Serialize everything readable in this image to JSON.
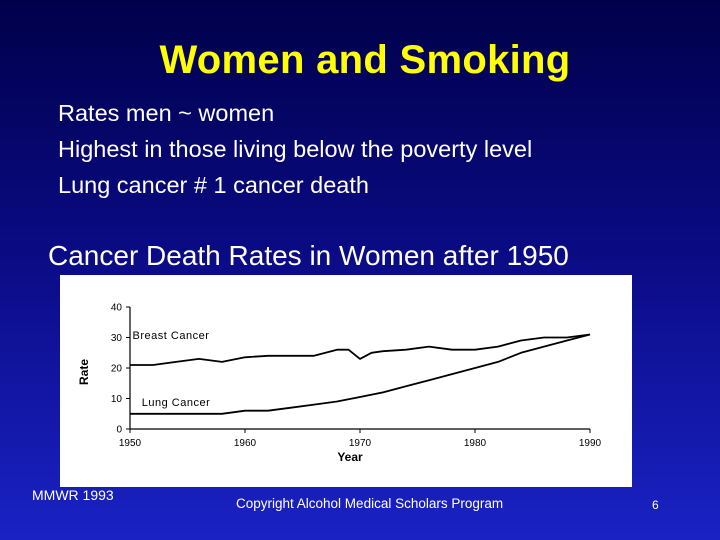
{
  "slide": {
    "title": "Women and Smoking",
    "bullets": [
      "Rates men ~ women",
      "Highest in those living below the poverty level",
      "Lung cancer # 1 cancer death"
    ],
    "chart_heading": "Cancer Death Rates in Women after 1950",
    "source": "MMWR 1993",
    "copyright": "Copyright Alcohol Medical Scholars Program",
    "page_number": "6"
  },
  "colors": {
    "title": "#ffff00",
    "text": "#ffffff",
    "background_top": "#00004a",
    "background_bottom": "#1a22c4",
    "chart_line": "#000000"
  },
  "chart_data": {
    "type": "line",
    "title": "",
    "xlabel": "Year",
    "ylabel": "Rate",
    "xlim": [
      1950,
      1990
    ],
    "ylim": [
      0,
      40
    ],
    "x_ticks": [
      1950,
      1960,
      1970,
      1980,
      1990
    ],
    "y_ticks": [
      0,
      10,
      20,
      30,
      40
    ],
    "grid": false,
    "legend": "inline labels",
    "series": [
      {
        "name": "Breast Cancer",
        "x": [
          1950,
          1952,
          1954,
          1956,
          1958,
          1960,
          1962,
          1964,
          1966,
          1968,
          1969,
          1970,
          1971,
          1972,
          1974,
          1976,
          1978,
          1980,
          1982,
          1984,
          1986,
          1988,
          1990
        ],
        "y": [
          21,
          21,
          22,
          23,
          22,
          23.5,
          24,
          24,
          24,
          26,
          26,
          23,
          25,
          25.5,
          26,
          27,
          26,
          26,
          27,
          29,
          30,
          30,
          31
        ]
      },
      {
        "name": "Lung Cancer",
        "x": [
          1950,
          1952,
          1954,
          1956,
          1958,
          1960,
          1962,
          1964,
          1966,
          1968,
          1970,
          1972,
          1974,
          1976,
          1978,
          1980,
          1982,
          1984,
          1986,
          1988,
          1990
        ],
        "y": [
          5,
          5,
          5,
          5,
          5,
          6,
          6,
          7,
          8,
          9,
          10.5,
          12,
          14,
          16,
          18,
          20,
          22,
          25,
          27,
          29,
          31
        ]
      }
    ]
  }
}
